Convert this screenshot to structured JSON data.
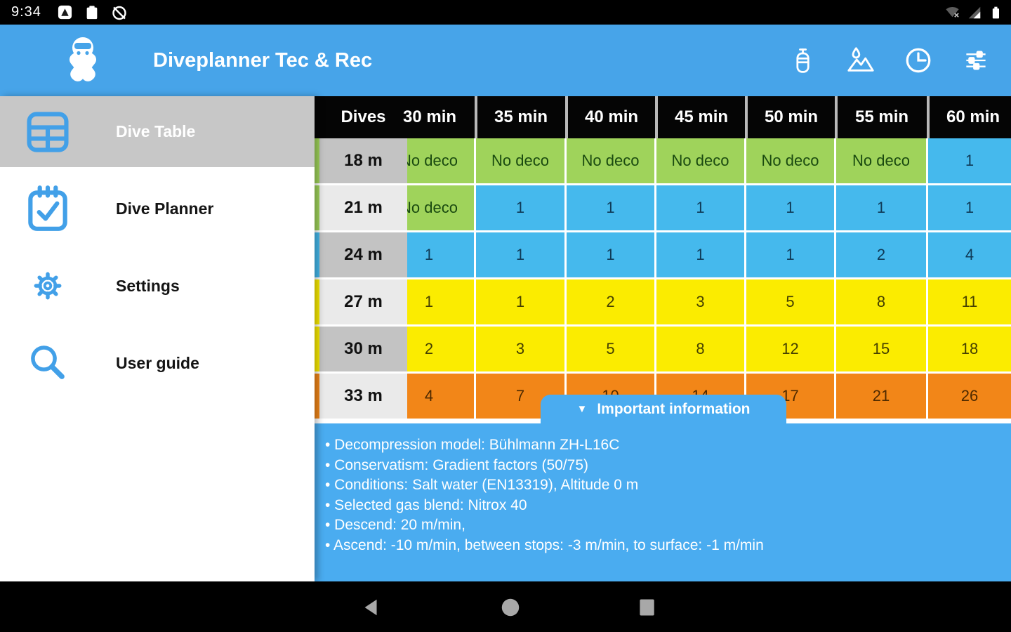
{
  "status_bar": {
    "time": "9:34",
    "left_icons": [
      "app-notification",
      "clipboard",
      "alarm-off"
    ],
    "right_icons": [
      "wifi-off",
      "cellular-signal",
      "battery"
    ]
  },
  "app_bar": {
    "title": "Diveplanner Tec & Rec",
    "actions": [
      {
        "icon": "dive-tank"
      },
      {
        "icon": "altitude"
      },
      {
        "icon": "dive-time"
      },
      {
        "icon": "tune-settings"
      }
    ]
  },
  "drawer": {
    "items": [
      {
        "label": "Dive Table",
        "icon": "dive-table",
        "selected": true
      },
      {
        "label": "Dive Planner",
        "icon": "dive-planner",
        "selected": false
      },
      {
        "label": "Settings",
        "icon": "settings-gear",
        "selected": false
      },
      {
        "label": "User guide",
        "icon": "user-guide-search",
        "selected": false
      }
    ]
  },
  "dive_table": {
    "corner_header": "Dives",
    "column_headers": [
      "30 min",
      "35 min",
      "40 min",
      "45 min",
      "50 min",
      "55 min",
      "60 min"
    ],
    "rows": [
      {
        "depth": "18 m",
        "values": [
          "No deco",
          "No deco",
          "No deco",
          "No deco",
          "No deco",
          "No deco",
          "1"
        ],
        "cell_colors": [
          "green",
          "green",
          "green",
          "green",
          "green",
          "green",
          "blue"
        ]
      },
      {
        "depth": "21 m",
        "values": [
          "No deco",
          "1",
          "1",
          "1",
          "1",
          "1",
          "1"
        ],
        "cell_colors": [
          "green",
          "blue",
          "blue",
          "blue",
          "blue",
          "blue",
          "blue"
        ]
      },
      {
        "depth": "24 m",
        "values": [
          "1",
          "1",
          "1",
          "1",
          "1",
          "2",
          "4"
        ],
        "cell_colors": [
          "blue",
          "blue",
          "blue",
          "blue",
          "blue",
          "blue",
          "blue"
        ]
      },
      {
        "depth": "27 m",
        "values": [
          "1",
          "1",
          "2",
          "3",
          "5",
          "8",
          "11"
        ],
        "cell_colors": [
          "yellow",
          "yellow",
          "yellow",
          "yellow",
          "yellow",
          "yellow",
          "yellow"
        ]
      },
      {
        "depth": "30 m",
        "values": [
          "2",
          "3",
          "5",
          "8",
          "12",
          "15",
          "18"
        ],
        "cell_colors": [
          "yellow",
          "yellow",
          "yellow",
          "yellow",
          "yellow",
          "yellow",
          "yellow"
        ]
      },
      {
        "depth": "33 m",
        "values": [
          "4",
          "7",
          "10",
          "14",
          "17",
          "21",
          "26"
        ],
        "cell_colors": [
          "orange",
          "orange",
          "orange",
          "orange",
          "orange",
          "orange",
          "orange"
        ]
      }
    ]
  },
  "info_panel": {
    "toggle_glyph": "▼",
    "title": "Important information",
    "lines": [
      "• Decompression model: Bühlmann ZH-L16C",
      "• Conservatism: Gradient factors (50/75)",
      "• Conditions: Salt water (EN13319), Altitude 0 m",
      "• Selected gas blend: Nitrox 40",
      "• Descend: 20 m/min,",
      "• Ascend: -10 m/min, between stops: -3 m/min, to surface: -1 m/min"
    ]
  },
  "nav_bar": {
    "icons": [
      "back",
      "home",
      "recents"
    ]
  },
  "colors": {
    "app_bar_blue": "#47A4E9",
    "panel_blue": "#4AACF0",
    "cell_green": "#9FD35B",
    "cell_blue": "#45B9ED",
    "cell_yellow": "#FBEC00",
    "cell_orange": "#F28618",
    "row_gray_dark": "#C3C3C3",
    "row_gray_light": "#EAEAEA",
    "drawer_highlight": "#C7C7C7",
    "icon_blue": "#42A0E8",
    "header_black": "#050505"
  }
}
